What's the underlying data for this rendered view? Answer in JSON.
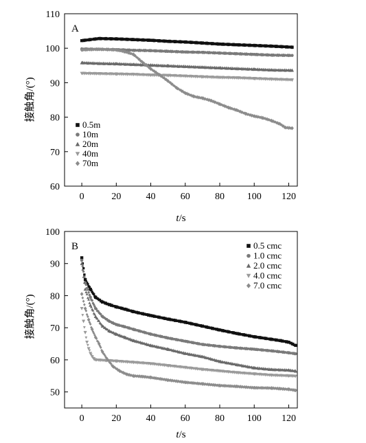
{
  "chart_data": [
    {
      "type": "scatter",
      "panel": "A",
      "title": "",
      "xlabel_var": "t",
      "xlabel_unit": "/s",
      "ylabel": "接触角/(°)",
      "xlim": [
        -10,
        125
      ],
      "ylim": [
        60,
        110
      ],
      "xticks": [
        0,
        20,
        40,
        60,
        80,
        100,
        120
      ],
      "yticks": [
        60,
        70,
        80,
        90,
        100,
        110
      ],
      "legend_position": "bottom-left",
      "series": [
        {
          "name": "0.5m",
          "marker": "square",
          "color": "#111111",
          "x": [
            0,
            10,
            20,
            30,
            40,
            50,
            60,
            70,
            80,
            90,
            100,
            110,
            122
          ],
          "y": [
            102.2,
            102.8,
            102.7,
            102.5,
            102.3,
            102.0,
            101.8,
            101.5,
            101.2,
            101.0,
            100.8,
            100.6,
            100.3
          ]
        },
        {
          "name": "10m",
          "marker": "circle",
          "color": "#7a7a7a",
          "x": [
            0,
            10,
            20,
            30,
            40,
            50,
            60,
            70,
            80,
            90,
            100,
            110,
            122
          ],
          "y": [
            99.8,
            99.7,
            99.6,
            99.4,
            99.3,
            99.1,
            98.9,
            98.8,
            98.6,
            98.4,
            98.2,
            98.0,
            97.9
          ]
        },
        {
          "name": "20m",
          "marker": "triangle-up",
          "color": "#6a6a6a",
          "x": [
            0,
            10,
            20,
            30,
            40,
            50,
            60,
            70,
            80,
            90,
            100,
            110,
            122
          ],
          "y": [
            95.8,
            95.6,
            95.5,
            95.3,
            95.1,
            94.9,
            94.7,
            94.5,
            94.3,
            94.1,
            93.9,
            93.7,
            93.6
          ]
        },
        {
          "name": "40m",
          "marker": "triangle-down",
          "color": "#9a9a9a",
          "x": [
            0,
            10,
            20,
            30,
            40,
            50,
            60,
            70,
            80,
            90,
            100,
            110,
            122
          ],
          "y": [
            92.7,
            92.6,
            92.5,
            92.4,
            92.2,
            92.1,
            91.9,
            91.7,
            91.5,
            91.4,
            91.2,
            91.0,
            90.8
          ]
        },
        {
          "name": "70m",
          "marker": "diamond",
          "color": "#8c8c8c",
          "x": [
            0,
            10,
            20,
            25,
            30,
            35,
            40,
            45,
            50,
            55,
            60,
            65,
            70,
            75,
            80,
            85,
            90,
            95,
            100,
            105,
            110,
            115,
            118,
            122
          ],
          "y": [
            99.5,
            99.7,
            99.5,
            99.0,
            98.2,
            96.0,
            94.0,
            92.3,
            90.5,
            88.5,
            87.0,
            86.0,
            85.5,
            84.8,
            83.8,
            82.8,
            82.0,
            81.0,
            80.3,
            79.8,
            79.0,
            78.0,
            77.0,
            76.8
          ]
        }
      ]
    },
    {
      "type": "scatter",
      "panel": "B",
      "title": "",
      "xlabel_var": "t",
      "xlabel_unit": "/s",
      "ylabel": "接触角/(°)",
      "xlim": [
        -10,
        125
      ],
      "ylim": [
        45,
        100
      ],
      "xticks": [
        0,
        20,
        40,
        60,
        80,
        100,
        120
      ],
      "yticks": [
        50,
        60,
        70,
        80,
        90,
        100
      ],
      "legend_position": "top-right",
      "series": [
        {
          "name": "0.5 cmc",
          "marker": "square",
          "color": "#111111",
          "x": [
            0,
            2,
            5,
            8,
            12,
            16,
            20,
            25,
            30,
            40,
            50,
            60,
            70,
            80,
            90,
            100,
            110,
            115,
            120,
            124
          ],
          "y": [
            91.8,
            85.0,
            82.0,
            79.5,
            78.0,
            77.2,
            76.5,
            75.8,
            75.0,
            73.8,
            72.7,
            71.7,
            70.5,
            69.3,
            68.2,
            67.2,
            66.4,
            66.0,
            65.5,
            64.5
          ]
        },
        {
          "name": "1.0 cmc",
          "marker": "circle",
          "color": "#7a7a7a",
          "x": [
            0,
            2,
            5,
            8,
            12,
            16,
            20,
            25,
            30,
            40,
            50,
            60,
            70,
            80,
            90,
            100,
            110,
            120,
            124
          ],
          "y": [
            91.0,
            84.0,
            79.5,
            76.0,
            73.5,
            72.0,
            71.0,
            70.3,
            69.5,
            68.0,
            66.8,
            65.8,
            64.8,
            64.2,
            63.7,
            63.3,
            62.8,
            62.2,
            61.9
          ]
        },
        {
          "name": "2.0 cmc",
          "marker": "triangle-up",
          "color": "#6a6a6a",
          "x": [
            0,
            2,
            5,
            8,
            12,
            16,
            20,
            25,
            30,
            40,
            50,
            60,
            70,
            80,
            90,
            100,
            110,
            120,
            124
          ],
          "y": [
            90.0,
            82.0,
            77.0,
            73.5,
            70.5,
            69.0,
            68.0,
            67.0,
            66.0,
            64.5,
            63.3,
            62.0,
            61.0,
            59.5,
            58.5,
            57.5,
            57.0,
            56.8,
            56.5
          ]
        },
        {
          "name": "4.0 cmc",
          "marker": "triangle-down",
          "color": "#9a9a9a",
          "x": [
            0,
            1,
            2,
            3,
            4,
            5,
            6,
            7,
            8,
            10,
            14,
            20,
            30,
            40,
            50,
            60,
            70,
            80,
            90,
            100,
            110,
            120,
            124
          ],
          "y": [
            76.0,
            72.0,
            68.5,
            65.5,
            63.5,
            62.0,
            61.0,
            60.3,
            60.0,
            59.9,
            59.8,
            59.6,
            59.2,
            58.8,
            58.2,
            57.6,
            57.0,
            56.5,
            56.0,
            55.6,
            55.2,
            55.0,
            54.9
          ]
        },
        {
          "name": "7.0 cmc",
          "marker": "diamond",
          "color": "#8c8c8c",
          "x": [
            0,
            2,
            4,
            6,
            8,
            10,
            12,
            15,
            18,
            22,
            26,
            30,
            35,
            40,
            50,
            60,
            70,
            80,
            90,
            100,
            110,
            115,
            120,
            124
          ],
          "y": [
            80.5,
            76.0,
            72.5,
            69.5,
            67.0,
            65.0,
            62.5,
            60.0,
            58.0,
            56.5,
            55.5,
            55.0,
            54.8,
            54.5,
            53.7,
            53.0,
            52.5,
            52.0,
            51.7,
            51.3,
            51.2,
            51.0,
            50.8,
            50.5
          ]
        }
      ]
    }
  ]
}
